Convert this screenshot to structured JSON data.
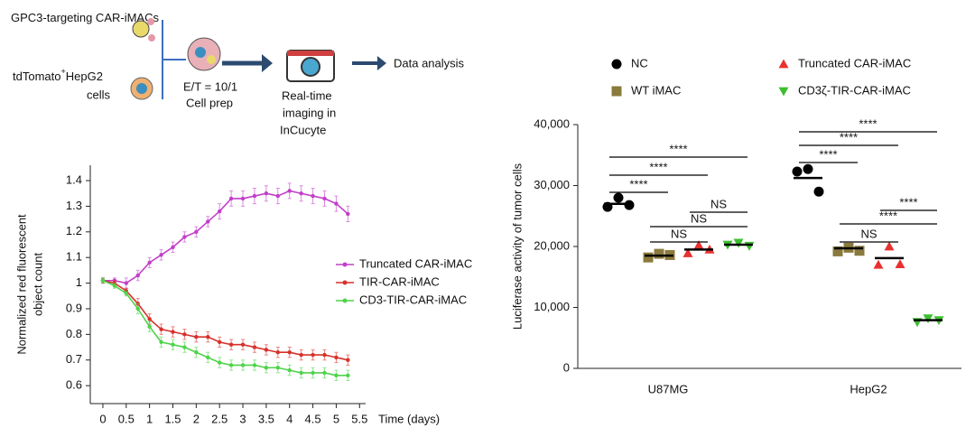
{
  "workflow": {
    "effector": "GPC3-targeting CAR-iMACs",
    "target": [
      "tdTomato",
      "+",
      "HepG2",
      "cells"
    ],
    "ratio": "E/T = 10/1",
    "prep": "Cell prep",
    "imaging": [
      "Real-time",
      "imaging in",
      "InCucyte"
    ],
    "analysis": "Data analysis"
  },
  "chart_data": [
    {
      "type": "line",
      "xlabel": "Time (days)",
      "ylabel": [
        "Normalized red fluorescent",
        "object count"
      ],
      "x": [
        0,
        0.25,
        0.5,
        0.75,
        1,
        1.25,
        1.5,
        1.75,
        2,
        2.25,
        2.5,
        2.75,
        3,
        3.25,
        3.5,
        3.75,
        4,
        4.25,
        4.5,
        4.75,
        5,
        5.25
      ],
      "series": [
        {
          "name": "Truncated CAR-iMAC",
          "color": "#c23fc9",
          "values": [
            1.01,
            1.01,
            1.0,
            1.03,
            1.08,
            1.11,
            1.14,
            1.18,
            1.2,
            1.24,
            1.28,
            1.33,
            1.33,
            1.34,
            1.35,
            1.34,
            1.36,
            1.35,
            1.34,
            1.33,
            1.31,
            1.27
          ],
          "errors": [
            0.01,
            0.01,
            0.02,
            0.02,
            0.02,
            0.02,
            0.02,
            0.02,
            0.02,
            0.02,
            0.03,
            0.03,
            0.03,
            0.03,
            0.03,
            0.03,
            0.03,
            0.03,
            0.03,
            0.03,
            0.03,
            0.03
          ]
        },
        {
          "name": "TIR-CAR-iMAC",
          "color": "#d8302a",
          "values": [
            1.01,
            1.0,
            0.97,
            0.92,
            0.86,
            0.82,
            0.81,
            0.8,
            0.79,
            0.79,
            0.77,
            0.76,
            0.76,
            0.75,
            0.74,
            0.73,
            0.73,
            0.72,
            0.72,
            0.72,
            0.71,
            0.7
          ],
          "errors": [
            0.01,
            0.01,
            0.01,
            0.02,
            0.02,
            0.02,
            0.02,
            0.02,
            0.02,
            0.02,
            0.02,
            0.02,
            0.02,
            0.02,
            0.02,
            0.02,
            0.02,
            0.02,
            0.02,
            0.02,
            0.02,
            0.02
          ]
        },
        {
          "name": "CD3-TIR-CAR-iMAC",
          "color": "#4fd34a",
          "values": [
            1.01,
            0.99,
            0.96,
            0.9,
            0.83,
            0.77,
            0.76,
            0.75,
            0.73,
            0.71,
            0.69,
            0.68,
            0.68,
            0.68,
            0.67,
            0.67,
            0.66,
            0.65,
            0.65,
            0.65,
            0.64,
            0.64
          ],
          "errors": [
            0.01,
            0.01,
            0.01,
            0.02,
            0.02,
            0.02,
            0.02,
            0.02,
            0.02,
            0.02,
            0.02,
            0.02,
            0.02,
            0.02,
            0.02,
            0.02,
            0.02,
            0.02,
            0.02,
            0.02,
            0.02,
            0.02
          ]
        }
      ],
      "xlim": [
        -0.27,
        5.63
      ],
      "xticks": [
        0,
        0.5,
        1,
        1.5,
        2,
        2.5,
        3,
        3.5,
        4,
        4.5,
        5,
        5.5
      ],
      "ylim": [
        0.53,
        1.46
      ],
      "yticks": [
        0.6,
        0.7,
        0.8,
        0.9,
        1,
        1.1,
        1.2,
        1.3,
        1.4
      ],
      "legend": "right"
    },
    {
      "type": "dot",
      "ylabel": "Luciferase activity of tumor cells",
      "categories": [
        "U87MG",
        "HepG2"
      ],
      "series": [
        {
          "name": "NC",
          "color": "#000000",
          "marker": "circle",
          "values": [
            [
              26500,
              28000,
              26800
            ],
            [
              32300,
              32700,
              29000
            ]
          ],
          "means": [
            27000,
            31250
          ]
        },
        {
          "name": "WT iMAC",
          "color": "#8a7a3c",
          "marker": "square",
          "values": [
            [
              18200,
              18800,
              18600
            ],
            [
              19200,
              19800,
              19300
            ]
          ],
          "means": [
            18500,
            19700
          ]
        },
        {
          "name": "Truncated CAR-iMAC",
          "color": "#e8312f",
          "marker": "triangle-up",
          "values": [
            [
              18900,
              20200,
              19500
            ],
            [
              17000,
              20000,
              17100
            ]
          ],
          "means": [
            19500,
            18100
          ]
        },
        {
          "name": "CD3ζ-TIR-CAR-iMAC",
          "color": "#3cbf2f",
          "marker": "triangle-down",
          "values": [
            [
              20300,
              20600,
              20100
            ],
            [
              7600,
              8200,
              7900
            ]
          ],
          "means": [
            20300,
            7900
          ]
        }
      ],
      "ylim": [
        0,
        40000
      ],
      "yticks": [
        0,
        {
          "value": 10000,
          "label": "10,000"
        },
        {
          "value": 20000,
          "label": "20,000"
        },
        {
          "value": 30000,
          "label": "30,000"
        },
        {
          "value": 40000,
          "label": "40,000"
        }
      ],
      "comparisons": [
        [
          "****",
          "****",
          "****",
          "NS",
          "NS",
          "NS"
        ],
        [
          "****",
          "****",
          "****",
          "NS",
          "****",
          "****"
        ]
      ],
      "legend": "top"
    }
  ]
}
